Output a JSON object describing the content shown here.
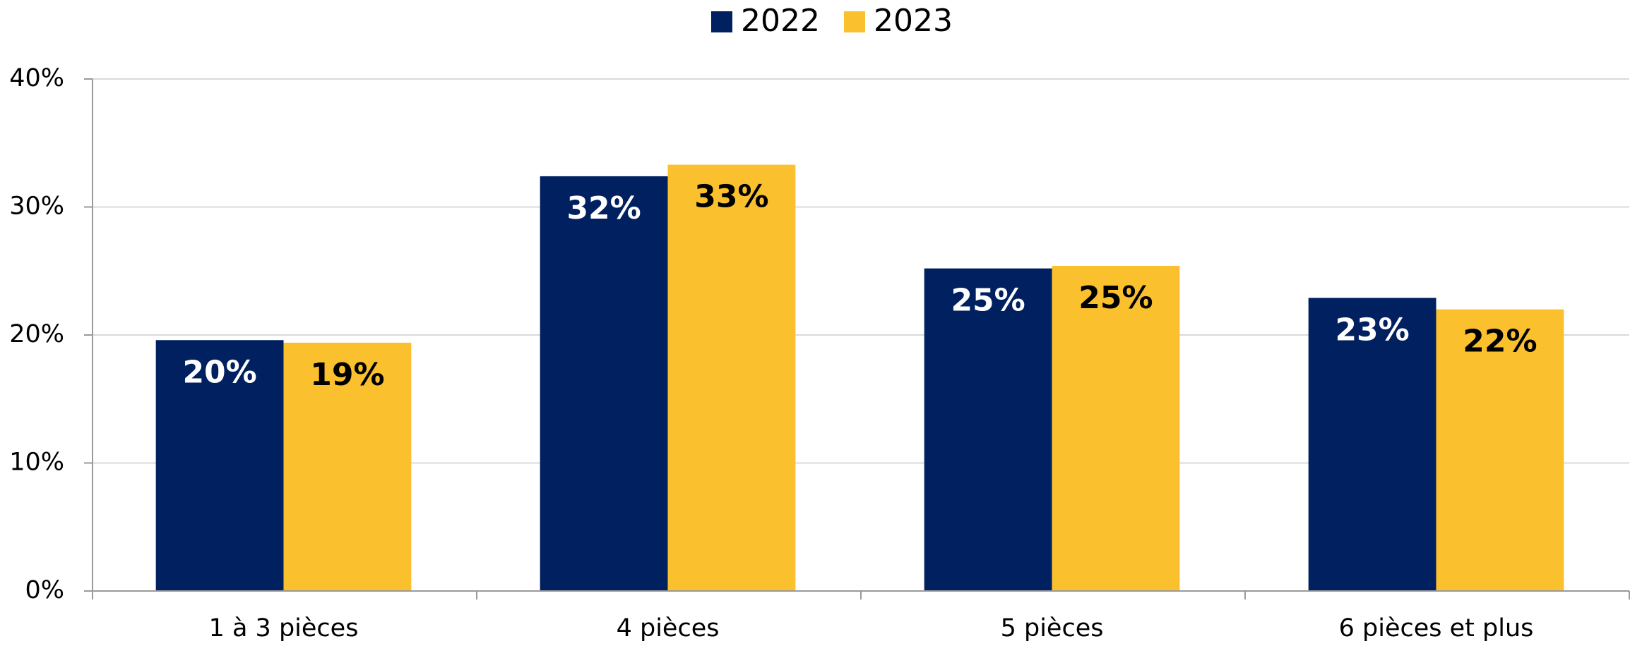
{
  "chart_data": {
    "type": "bar",
    "categories": [
      "1 à 3 pièces",
      "4 pièces",
      "5 pièces",
      "6 pièces et plus"
    ],
    "series": [
      {
        "name": "2022",
        "color": "#002060",
        "label_color": "#ffffff",
        "values": [
          19.6,
          32.4,
          25.2,
          22.9
        ],
        "value_labels": [
          "20%",
          "32%",
          "25%",
          "23%"
        ]
      },
      {
        "name": "2023",
        "color": "#fbc02d",
        "label_color": "#000000",
        "values": [
          19.4,
          33.3,
          25.4,
          22.0
        ],
        "value_labels": [
          "19%",
          "33%",
          "25%",
          "22%"
        ]
      }
    ],
    "ylim": [
      0,
      40
    ],
    "yticks": [
      {
        "value": 0,
        "label": "0%"
      },
      {
        "value": 10,
        "label": "10%"
      },
      {
        "value": 20,
        "label": "20%"
      },
      {
        "value": 30,
        "label": "30%"
      },
      {
        "value": 40,
        "label": "40%"
      }
    ],
    "grid": true,
    "legend": "top"
  }
}
